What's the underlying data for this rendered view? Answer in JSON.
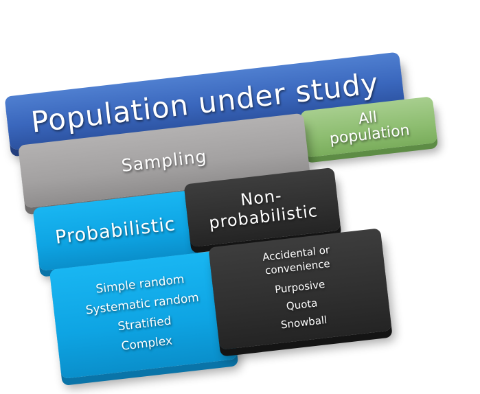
{
  "diagram": {
    "population": {
      "label": "Population under study",
      "color": "#3a67bd"
    },
    "all_population": {
      "line1": "All",
      "line2": "population",
      "color": "#8dbd70"
    },
    "sampling": {
      "label": "Sampling",
      "color": "#a3a1a1"
    },
    "probabilistic": {
      "label": "Probabilistic",
      "color": "#0ea4e3",
      "methods": [
        "Simple random",
        "Systematic random",
        "Stratified",
        "Complex"
      ]
    },
    "non_probabilistic": {
      "line1": "Non-",
      "line2": "probabilistic",
      "color": "#2f2f2f",
      "methods": [
        "Accidental or",
        "convenience",
        "Purposive",
        "Quota",
        "Snowball"
      ]
    }
  }
}
